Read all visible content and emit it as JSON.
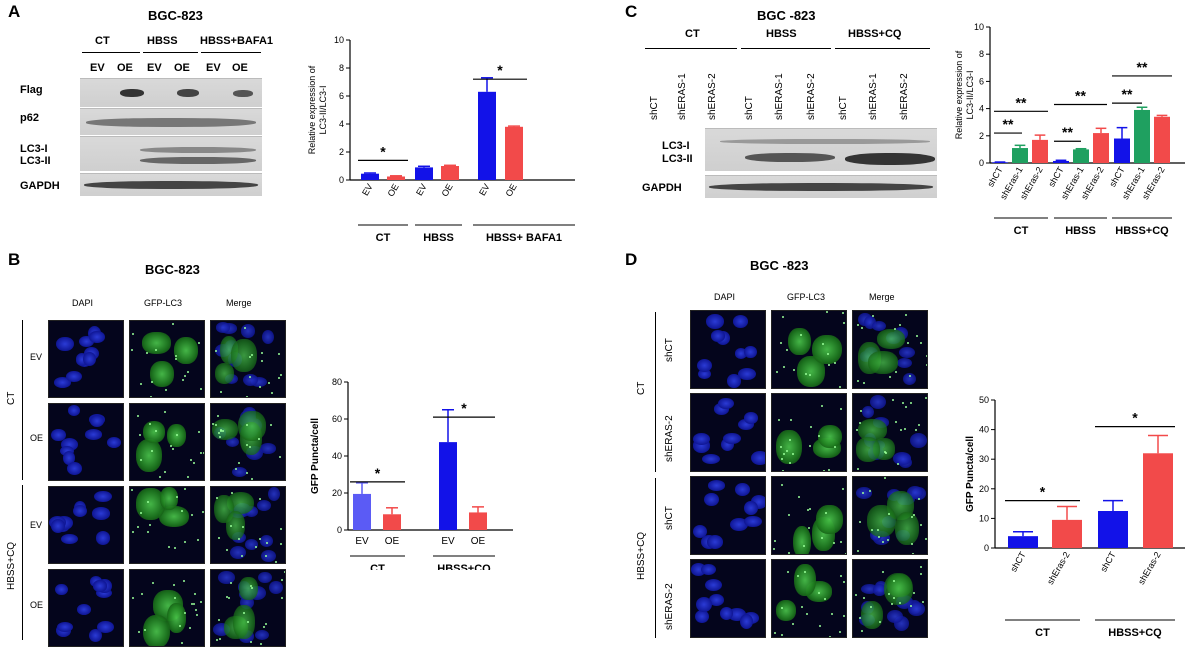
{
  "panel_A": {
    "letter": "A",
    "cell_line": "BGC-823",
    "groups": [
      "CT",
      "HBSS",
      "HBSS+ BAFA1"
    ],
    "lanes": [
      "EV",
      "OE",
      "EV",
      "OE",
      "EV",
      "OE"
    ],
    "rows": [
      "Flag",
      "p62",
      "LC3-I",
      "LC3-II",
      "GAPDH"
    ]
  },
  "panel_B": {
    "letter": "B",
    "cell_line": "BGC-823",
    "channels": [
      "DAPI",
      "GFP-LC3",
      "Merge"
    ],
    "rows": [
      "EV",
      "OE",
      "EV",
      "OE"
    ],
    "row_groups": [
      "CT",
      "HBSS+CQ"
    ]
  },
  "panel_C": {
    "letter": "C",
    "cell_line": "BGC -823",
    "groups": [
      "CT",
      "HBSS",
      "HBSS+CQ"
    ],
    "lanes": [
      "shCT",
      "shERAS-1",
      "shERAS-2",
      "shCT",
      "shERAS-1",
      "shERAS-2",
      "shCT",
      "shERAS-1",
      "shERAS-2"
    ],
    "rows": [
      "LC3-I",
      "LC3-II",
      "GAPDH"
    ]
  },
  "panel_D": {
    "letter": "D",
    "cell_line": "BGC -823",
    "channels": [
      "DAPI",
      "GFP-LC3",
      "Merge"
    ],
    "rows": [
      "shCT",
      "shERAS-2",
      "shCT",
      "shERAS-2"
    ],
    "row_groups": [
      "CT",
      "HBSS+CQ"
    ]
  },
  "chart_data": [
    {
      "id": "A",
      "type": "bar",
      "categories": [
        "EV",
        "OE",
        "EV",
        "OE",
        "EV",
        "OE"
      ],
      "groups": [
        "CT",
        "HBSS",
        "HBSS+ BAFA1"
      ],
      "values": [
        0.45,
        0.25,
        0.9,
        1.0,
        6.3,
        3.8
      ],
      "errors": [
        0.05,
        0.05,
        0.08,
        0.05,
        1.0,
        0.05
      ],
      "colors": [
        "#1212e8",
        "#f24a4a",
        "#1212e8",
        "#f24a4a",
        "#1212e8",
        "#f24a4a"
      ],
      "ylabel": "Relative expression of LC3-II/LC3-I",
      "ylim": [
        0,
        10
      ],
      "yticks": [
        "0",
        "2",
        "4",
        "6",
        "8",
        "10"
      ],
      "significance": [
        "*",
        "*"
      ]
    },
    {
      "id": "B",
      "type": "bar",
      "categories": [
        "EV",
        "OE",
        "EV",
        "OE"
      ],
      "groups": [
        "CT",
        "HBSS+CQ"
      ],
      "values": [
        19.5,
        8.5,
        47.5,
        9.5
      ],
      "errors": [
        6,
        3.5,
        17.5,
        3
      ],
      "colors": [
        "#5b5bf5",
        "#f24a4a",
        "#1212e8",
        "#f24a4a"
      ],
      "ylabel": "GFP Puncta/cell",
      "ylim": [
        0,
        80
      ],
      "yticks": [
        "0",
        "20",
        "40",
        "60",
        "80"
      ],
      "significance": [
        "*",
        "*"
      ]
    },
    {
      "id": "C",
      "type": "bar",
      "categories": [
        "shCT",
        "shEras-1",
        "shEras-2",
        "shCT",
        "shEras-1",
        "shEras-2",
        "shCT",
        "shEras-1",
        "shEras-2"
      ],
      "groups": [
        "CT",
        "HBSS",
        "HBSS+CQ"
      ],
      "values": [
        0.05,
        1.1,
        1.7,
        0.15,
        1.0,
        2.2,
        1.8,
        3.9,
        3.4
      ],
      "errors": [
        0.02,
        0.2,
        0.35,
        0.05,
        0.05,
        0.35,
        0.8,
        0.2,
        0.1
      ],
      "colors": [
        "#1212e8",
        "#1fa060",
        "#f24a4a",
        "#1212e8",
        "#1fa060",
        "#f24a4a",
        "#1212e8",
        "#1fa060",
        "#f24a4a"
      ],
      "ylabel": "Relative expression of LC3-II/LC3-I",
      "ylim": [
        0,
        10
      ],
      "yticks": [
        "0",
        "2",
        "4",
        "6",
        "8",
        "10"
      ],
      "significance": [
        "**",
        "**",
        "**",
        "**",
        "**",
        "**"
      ]
    },
    {
      "id": "D",
      "type": "bar",
      "categories": [
        "shCT",
        "shEras-2",
        "shCT",
        "shEras-2"
      ],
      "groups": [
        "CT",
        "HBSS+CQ"
      ],
      "values": [
        4,
        9.5,
        12.5,
        32
      ],
      "errors": [
        1.5,
        4.5,
        3.5,
        6
      ],
      "colors": [
        "#1212e8",
        "#f24a4a",
        "#1212e8",
        "#f24a4a"
      ],
      "ylabel": "GFP Puncta/cell",
      "ylim": [
        0,
        50
      ],
      "yticks": [
        "0",
        "10",
        "20",
        "30",
        "40",
        "50"
      ],
      "significance": [
        "*",
        "*"
      ]
    }
  ]
}
